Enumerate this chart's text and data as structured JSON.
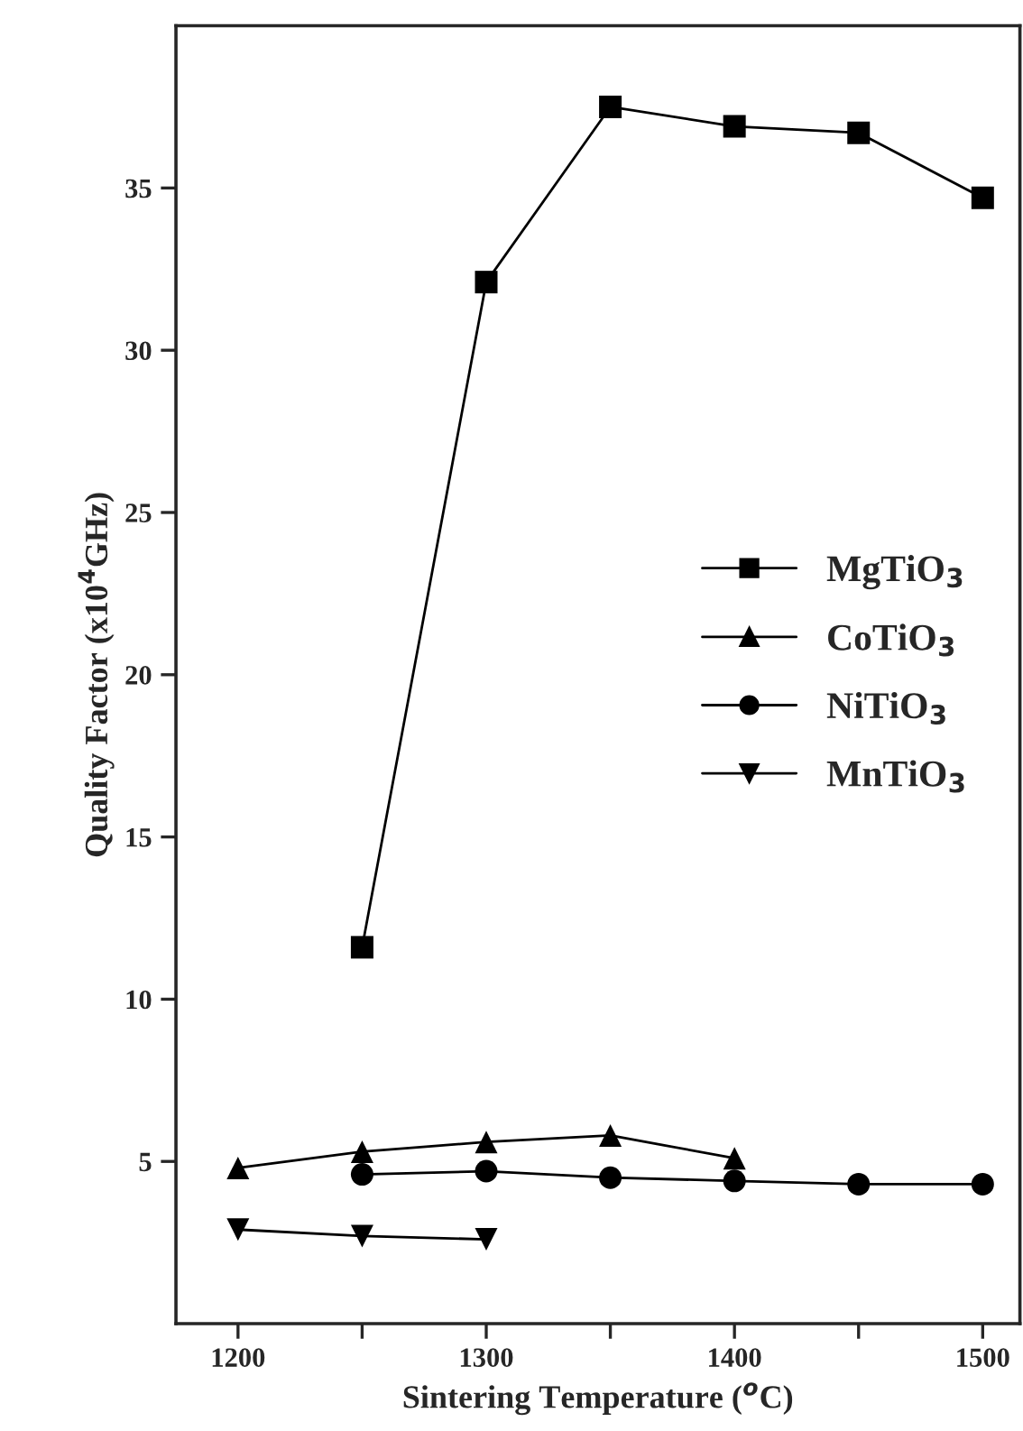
{
  "chart_data": {
    "type": "line",
    "xlabel": "Sintering Temperature ($^{o}$C)",
    "ylabel": "Quality Factor (x10$^{4}$GHz)",
    "x": [
      1200,
      1250,
      1300,
      1350,
      1400,
      1450,
      1500
    ],
    "series": [
      {
        "name": "MgTiO$_{3}$",
        "color": "#000000",
        "marker": "square",
        "values": [
          null,
          11.6,
          32.1,
          37.5,
          36.9,
          36.7,
          34.7
        ]
      },
      {
        "name": "CoTiO$_{3}$",
        "color": "#000000",
        "marker": "triangle",
        "values": [
          4.8,
          5.3,
          5.6,
          5.8,
          5.1,
          null,
          null
        ]
      },
      {
        "name": "NiTiO$_{3}$",
        "color": "#000000",
        "marker": "circle",
        "values": [
          null,
          4.6,
          4.7,
          4.5,
          4.4,
          4.3,
          4.3
        ]
      },
      {
        "name": "MnTiO$_{3}$",
        "color": "#000000",
        "marker": "triangle_down",
        "values": [
          2.9,
          2.7,
          2.6,
          null,
          null,
          null,
          null
        ]
      }
    ],
    "xlim": [
      1175,
      1515
    ],
    "ylim": [
      0,
      40
    ],
    "xticks": [
      1200,
      {
        "value": 1250,
        "label": null
      },
      1300,
      {
        "value": 1350,
        "label": null
      },
      1400,
      {
        "value": 1450,
        "label": null
      },
      1500
    ],
    "yticks": [
      5,
      10,
      15,
      20,
      25,
      30,
      35
    ],
    "legend": "center right",
    "line_style": "solid",
    "grid": false
  }
}
